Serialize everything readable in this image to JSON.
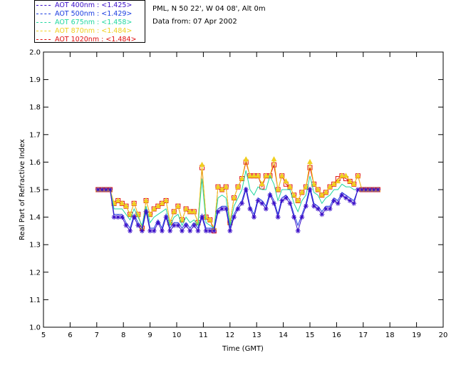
{
  "legend": {
    "entries": [
      {
        "label": "AOT  400nm : <1.425>",
        "color": "#3a0ec8"
      },
      {
        "label": "AOT  500nm : <1.429>",
        "color": "#1a3ce0"
      },
      {
        "label": "AOT  675nm : <1.458>",
        "color": "#20d8a0"
      },
      {
        "label": "AOT  870nm : <1.484>",
        "color": "#f0d020"
      },
      {
        "label": "AOT 1020nm : <1.484>",
        "color": "#e01010"
      }
    ]
  },
  "info": {
    "location": "PML, N 50 22', W 04 08', Alt 0m",
    "date": "Data from: 07 Apr 2002"
  },
  "chart_data": {
    "type": "line",
    "title": "",
    "xlabel": "Time (GMT)",
    "ylabel": "Real Part of Refractive Index",
    "xlim": [
      5,
      20
    ],
    "ylim": [
      1.0,
      2.0
    ],
    "xticks": [
      "5",
      "6",
      "7",
      "8",
      "9",
      "10",
      "11",
      "12",
      "13",
      "14",
      "15",
      "16",
      "17",
      "18",
      "19",
      "20"
    ],
    "yticks": [
      "1.0",
      "1.1",
      "1.2",
      "1.3",
      "1.4",
      "1.5",
      "1.6",
      "1.7",
      "1.8",
      "1.9",
      "2.0"
    ],
    "x": [
      7.05,
      7.2,
      7.35,
      7.5,
      7.65,
      7.8,
      7.95,
      8.1,
      8.25,
      8.4,
      8.55,
      8.7,
      8.85,
      9.0,
      9.15,
      9.3,
      9.45,
      9.6,
      9.75,
      9.9,
      10.05,
      10.2,
      10.35,
      10.5,
      10.65,
      10.8,
      10.95,
      11.1,
      11.25,
      11.4,
      11.55,
      11.7,
      11.85,
      12.0,
      12.15,
      12.3,
      12.45,
      12.6,
      12.75,
      12.9,
      13.05,
      13.2,
      13.35,
      13.5,
      13.65,
      13.8,
      13.95,
      14.1,
      14.25,
      14.4,
      14.55,
      14.7,
      14.85,
      15.0,
      15.15,
      15.3,
      15.45,
      15.6,
      15.75,
      15.9,
      16.05,
      16.2,
      16.35,
      16.5,
      16.65,
      16.8,
      16.95,
      17.1,
      17.25,
      17.4,
      17.55
    ],
    "series": [
      {
        "name": "AOT 400nm",
        "color": "#3a0ec8",
        "marker": "star",
        "values": [
          1.5,
          1.5,
          1.5,
          1.5,
          1.4,
          1.4,
          1.4,
          1.37,
          1.35,
          1.4,
          1.37,
          1.35,
          1.42,
          1.35,
          1.35,
          1.38,
          1.35,
          1.4,
          1.35,
          1.37,
          1.37,
          1.35,
          1.37,
          1.35,
          1.37,
          1.35,
          1.4,
          1.35,
          1.35,
          1.35,
          1.42,
          1.43,
          1.43,
          1.35,
          1.4,
          1.43,
          1.45,
          1.5,
          1.43,
          1.4,
          1.46,
          1.45,
          1.43,
          1.48,
          1.45,
          1.4,
          1.46,
          1.47,
          1.45,
          1.4,
          1.35,
          1.4,
          1.44,
          1.5,
          1.44,
          1.43,
          1.41,
          1.43,
          1.43,
          1.46,
          1.45,
          1.48,
          1.47,
          1.46,
          1.45,
          1.5,
          1.5,
          1.5,
          1.5,
          1.5,
          1.5
        ]
      },
      {
        "name": "AOT 500nm",
        "color": "#1a3ce0",
        "marker": "none",
        "values": [
          1.5,
          1.5,
          1.5,
          1.5,
          1.41,
          1.41,
          1.41,
          1.38,
          1.36,
          1.41,
          1.38,
          1.36,
          1.43,
          1.36,
          1.36,
          1.39,
          1.36,
          1.41,
          1.36,
          1.38,
          1.38,
          1.36,
          1.38,
          1.36,
          1.38,
          1.36,
          1.41,
          1.36,
          1.36,
          1.36,
          1.43,
          1.44,
          1.44,
          1.36,
          1.41,
          1.44,
          1.46,
          1.51,
          1.44,
          1.41,
          1.47,
          1.46,
          1.44,
          1.49,
          1.46,
          1.41,
          1.47,
          1.48,
          1.46,
          1.41,
          1.37,
          1.41,
          1.45,
          1.51,
          1.45,
          1.44,
          1.42,
          1.44,
          1.44,
          1.47,
          1.46,
          1.49,
          1.48,
          1.47,
          1.46,
          1.5,
          1.5,
          1.5,
          1.5,
          1.5,
          1.5
        ]
      },
      {
        "name": "AOT 675nm",
        "color": "#20d8a0",
        "marker": "none",
        "values": [
          1.5,
          1.5,
          1.5,
          1.5,
          1.43,
          1.43,
          1.43,
          1.41,
          1.39,
          1.43,
          1.4,
          1.37,
          1.44,
          1.38,
          1.4,
          1.41,
          1.42,
          1.43,
          1.37,
          1.4,
          1.41,
          1.37,
          1.4,
          1.38,
          1.39,
          1.37,
          1.54,
          1.38,
          1.37,
          1.36,
          1.47,
          1.48,
          1.47,
          1.37,
          1.44,
          1.47,
          1.5,
          1.57,
          1.5,
          1.48,
          1.51,
          1.5,
          1.5,
          1.55,
          1.52,
          1.46,
          1.5,
          1.5,
          1.5,
          1.45,
          1.42,
          1.46,
          1.48,
          1.55,
          1.49,
          1.48,
          1.45,
          1.47,
          1.48,
          1.5,
          1.5,
          1.52,
          1.51,
          1.51,
          1.5,
          1.5,
          1.5,
          1.5,
          1.5,
          1.5,
          1.5
        ]
      },
      {
        "name": "AOT 870nm",
        "color": "#f0d020",
        "marker": "triangle",
        "values": [
          1.5,
          1.5,
          1.5,
          1.5,
          1.45,
          1.46,
          1.45,
          1.44,
          1.41,
          1.45,
          1.41,
          1.36,
          1.46,
          1.41,
          1.43,
          1.44,
          1.45,
          1.46,
          1.38,
          1.42,
          1.44,
          1.39,
          1.43,
          1.42,
          1.42,
          1.38,
          1.59,
          1.4,
          1.39,
          1.36,
          1.51,
          1.5,
          1.51,
          1.38,
          1.47,
          1.51,
          1.54,
          1.61,
          1.55,
          1.55,
          1.55,
          1.52,
          1.55,
          1.55,
          1.61,
          1.5,
          1.55,
          1.53,
          1.51,
          1.48,
          1.46,
          1.49,
          1.51,
          1.6,
          1.52,
          1.5,
          1.48,
          1.49,
          1.51,
          1.52,
          1.53,
          1.55,
          1.55,
          1.53,
          1.52,
          1.55,
          1.5,
          1.5,
          1.5,
          1.5,
          1.5
        ]
      },
      {
        "name": "AOT 1020nm",
        "color": "#e01010",
        "marker": "square",
        "values": [
          1.5,
          1.5,
          1.5,
          1.5,
          1.45,
          1.46,
          1.45,
          1.44,
          1.41,
          1.45,
          1.41,
          1.36,
          1.46,
          1.41,
          1.43,
          1.44,
          1.45,
          1.46,
          1.38,
          1.42,
          1.44,
          1.39,
          1.43,
          1.42,
          1.42,
          1.38,
          1.58,
          1.4,
          1.39,
          1.35,
          1.51,
          1.5,
          1.51,
          1.38,
          1.47,
          1.51,
          1.54,
          1.6,
          1.55,
          1.55,
          1.55,
          1.51,
          1.55,
          1.55,
          1.59,
          1.5,
          1.55,
          1.52,
          1.51,
          1.48,
          1.46,
          1.49,
          1.51,
          1.58,
          1.52,
          1.5,
          1.48,
          1.49,
          1.51,
          1.52,
          1.54,
          1.55,
          1.54,
          1.53,
          1.52,
          1.55,
          1.5,
          1.5,
          1.5,
          1.5,
          1.5
        ]
      }
    ]
  }
}
